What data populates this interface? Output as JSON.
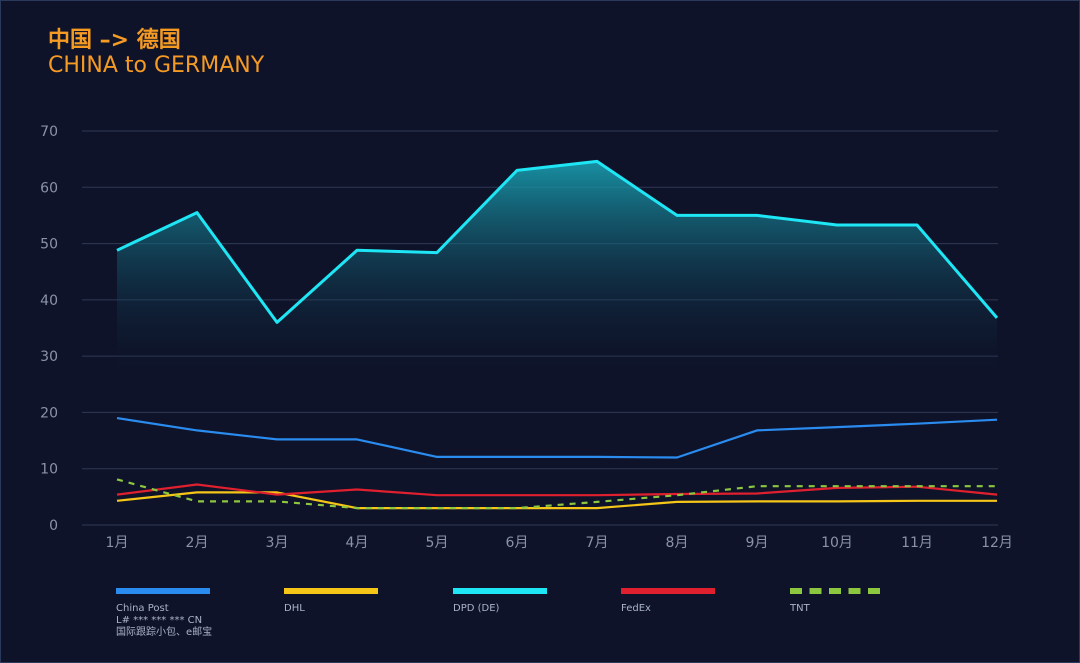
{
  "title": {
    "line1": "中国 –> 德国",
    "line2": "CHINA to GERMANY"
  },
  "colors": {
    "background": "#0e1329",
    "title": "#f59a23",
    "grid": "#2e3856",
    "axis_text": "#8b93a8",
    "china_post": "#2b8cf0",
    "dhl": "#f5c518",
    "dpd": "#1ee6f5",
    "fedex": "#e0202e",
    "tnt": "#8dc63f"
  },
  "chart_data": {
    "type": "line",
    "title": "中国 –> 德国 CHINA to GERMANY",
    "xlabel": "",
    "ylabel": "",
    "ylim": [
      0,
      70
    ],
    "yticks": [
      "0",
      "10",
      "20",
      "30",
      "40",
      "50",
      "60",
      "70"
    ],
    "grid": true,
    "legend_position": "bottom",
    "categories": [
      "1月",
      "2月",
      "3月",
      "4月",
      "5月",
      "6月",
      "7月",
      "8月",
      "9月",
      "10月",
      "11月",
      "12月"
    ],
    "series": [
      {
        "name": "China Post",
        "key": "china_post",
        "style": "solid",
        "fill": false,
        "values": [
          19,
          16.8,
          15.2,
          15.2,
          12.1,
          12.1,
          12.1,
          12.0,
          16.8,
          17.4,
          18.0,
          18.7
        ]
      },
      {
        "name": "DHL",
        "key": "dhl",
        "style": "solid",
        "fill": false,
        "values": [
          4.3,
          5.8,
          5.8,
          3.0,
          3.0,
          3.0,
          3.0,
          4.1,
          4.2,
          4.2,
          4.3,
          4.3
        ]
      },
      {
        "name": "DPD (DE)",
        "key": "dpd",
        "style": "solid",
        "fill": true,
        "values": [
          48.8,
          55.5,
          36.0,
          48.8,
          48.4,
          63.0,
          64.6,
          55.0,
          55.0,
          53.3,
          53.3,
          36.8
        ]
      },
      {
        "name": "FedEx",
        "key": "fedex",
        "style": "solid",
        "fill": false,
        "values": [
          5.4,
          7.2,
          5.4,
          6.3,
          5.3,
          5.3,
          5.3,
          5.5,
          5.6,
          6.6,
          6.8,
          5.4
        ]
      },
      {
        "name": "TNT",
        "key": "tnt",
        "style": "dashed",
        "fill": false,
        "values": [
          8.1,
          4.2,
          4.2,
          3.0,
          3.0,
          3.0,
          4.1,
          5.3,
          6.9,
          6.9,
          6.9,
          6.9
        ]
      }
    ]
  },
  "legend": [
    {
      "key": "china_post",
      "label": "China Post",
      "sub": [
        "L# *** *** *** CN",
        "国际跟踪小包、e邮宝"
      ]
    },
    {
      "key": "dhl",
      "label": "DHL",
      "sub": []
    },
    {
      "key": "dpd",
      "label": "DPD (DE)",
      "sub": []
    },
    {
      "key": "fedex",
      "label": "FedEx",
      "sub": []
    },
    {
      "key": "tnt",
      "label": "TNT",
      "sub": []
    }
  ]
}
